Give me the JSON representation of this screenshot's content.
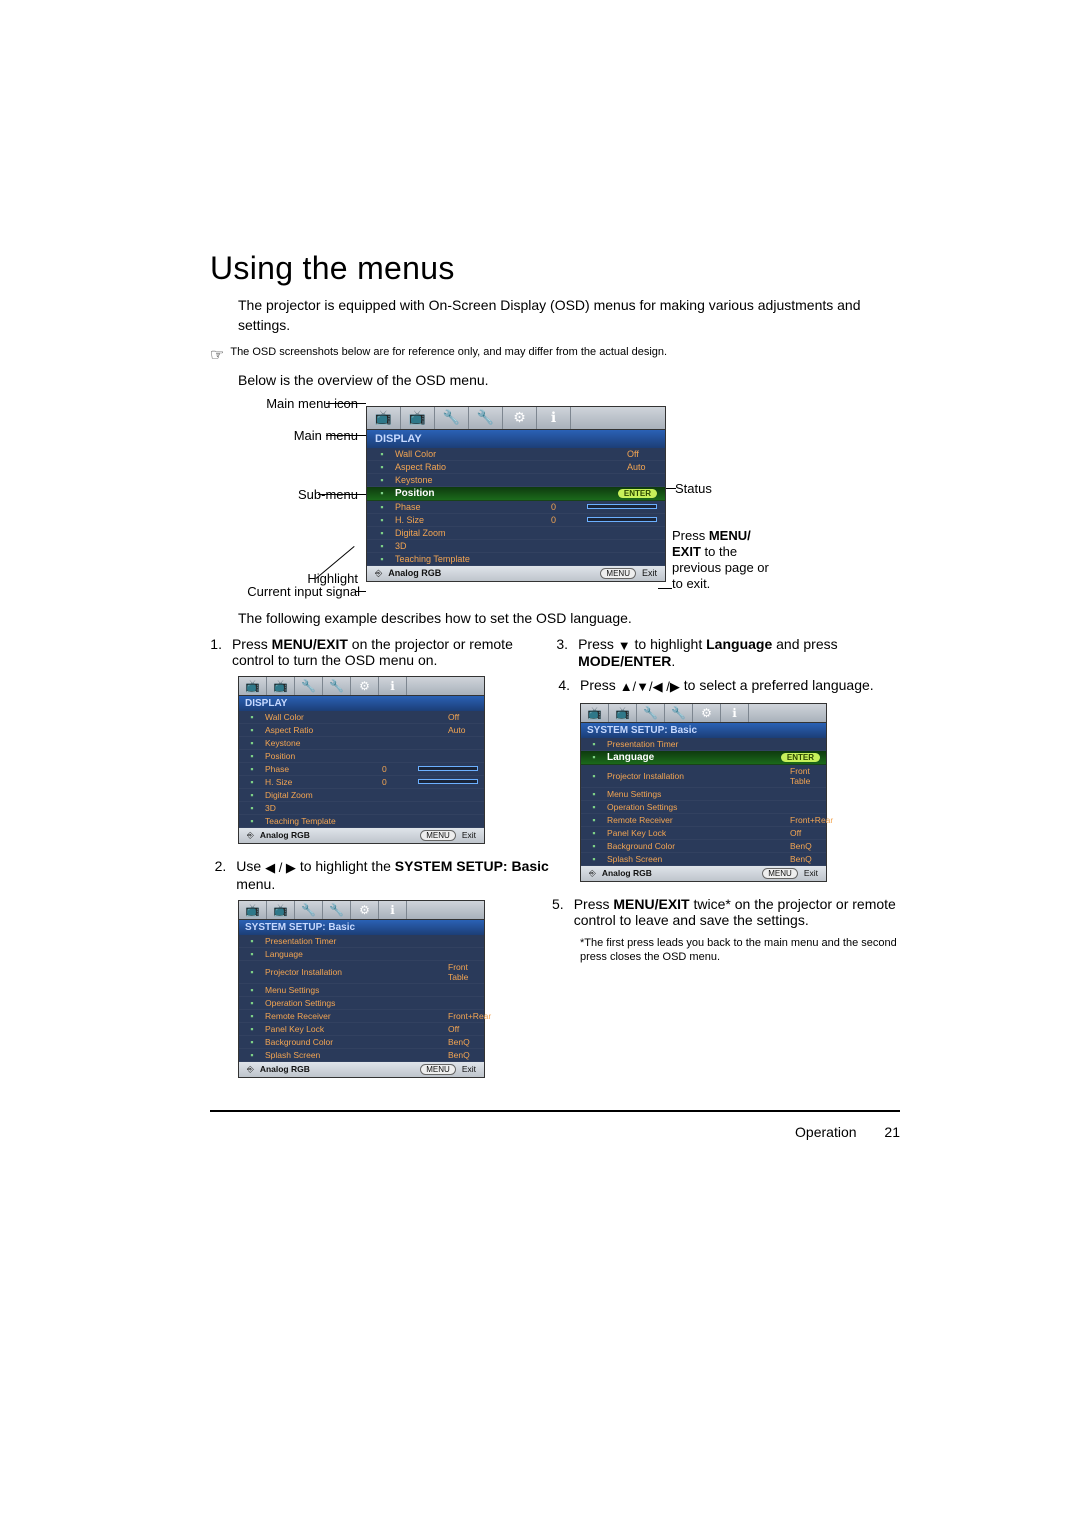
{
  "heading": "Using the menus",
  "intro": "The projector is equipped with On-Screen Display (OSD) menus for making various adjustments and settings.",
  "note": "The OSD screenshots below are for reference only, and may differ from the actual design.",
  "overview": "Below is the overview of the OSD menu.",
  "diagram_labels": {
    "main_menu_icon": "Main menu icon",
    "main_menu": "Main menu",
    "sub_menu": "Sub-menu",
    "highlight": "Highlight",
    "current_input": "Current input signal",
    "status": "Status",
    "press_menu_exit": "Press MENU/\nEXIT to the previous page or to exit.",
    "press_menu_prefix": "Press ",
    "press_menu_bold": "MENU/\nEXIT",
    "press_menu_suffix": " to the previous page or to exit."
  },
  "main_osd": {
    "title": "DISPLAY",
    "rows": [
      {
        "label": "Wall Color",
        "val": "Off"
      },
      {
        "label": "Aspect Ratio",
        "val": "Auto"
      },
      {
        "label": "Keystone",
        "val": ""
      },
      {
        "label": "Position",
        "hl": true,
        "enter": "ENTER"
      },
      {
        "label": "Phase",
        "val": "0",
        "slider": true
      },
      {
        "label": "H. Size",
        "val": "0",
        "slider": true
      },
      {
        "label": "Digital Zoom",
        "val": ""
      },
      {
        "label": "3D",
        "val": ""
      },
      {
        "label": "Teaching Template",
        "val": ""
      }
    ],
    "signal": "Analog RGB",
    "menu_chip": "MENU",
    "exit_text": "Exit"
  },
  "steps_desc": "The following example describes how to set the OSD language.",
  "step1": {
    "num": "1.",
    "prefix": "Press ",
    "bold1": "MENU/EXIT",
    "suffix": " on the projector or remote control to turn the OSD menu on."
  },
  "step1_osd": {
    "title": "DISPLAY",
    "rows": [
      {
        "label": "Wall Color",
        "val": "Off"
      },
      {
        "label": "Aspect Ratio",
        "val": "Auto"
      },
      {
        "label": "Keystone",
        "val": ""
      },
      {
        "label": "Position",
        "val": ""
      },
      {
        "label": "Phase",
        "val": "0",
        "slider": true
      },
      {
        "label": "H. Size",
        "val": "0",
        "slider": true
      },
      {
        "label": "Digital Zoom",
        "val": ""
      },
      {
        "label": "3D",
        "val": ""
      },
      {
        "label": "Teaching Template",
        "val": ""
      }
    ],
    "signal": "Analog RGB",
    "menu_chip": "MENU",
    "exit_text": "Exit"
  },
  "step2": {
    "num": "2.",
    "prefix": "Use ",
    "arrows": "◀ / ▶",
    "mid": " to highlight the ",
    "bold1": "SYSTEM SETUP: Basic",
    "suffix": " menu."
  },
  "step2_osd": {
    "title": "SYSTEM SETUP: Basic",
    "rows": [
      {
        "label": "Presentation Timer",
        "val": ""
      },
      {
        "label": "Language",
        "val": ""
      },
      {
        "label": "Projector Installation",
        "val": "Front Table"
      },
      {
        "label": "Menu Settings",
        "val": ""
      },
      {
        "label": "Operation Settings",
        "val": ""
      },
      {
        "label": "Remote Receiver",
        "val": "Front+Rear"
      },
      {
        "label": "Panel Key Lock",
        "val": "Off"
      },
      {
        "label": "Background Color",
        "val": "BenQ"
      },
      {
        "label": "Splash Screen",
        "val": "BenQ"
      }
    ],
    "signal": "Analog RGB",
    "menu_chip": "MENU",
    "exit_text": "Exit"
  },
  "step3": {
    "num": "3.",
    "prefix": "Press ",
    "arrow": "▼",
    "mid": " to highlight ",
    "bold1": "Language",
    "mid2": " and press ",
    "bold2": "MODE/ENTER",
    "suffix": "."
  },
  "step4": {
    "num": "4.",
    "prefix": "Press ",
    "arrows": "▲/▼/◀ /▶",
    "suffix": " to select a preferred language."
  },
  "step4_osd": {
    "title": "SYSTEM SETUP: Basic",
    "rows": [
      {
        "label": "Presentation Timer",
        "val": ""
      },
      {
        "label": "Language",
        "hl": true,
        "hlcolor": "#c7f15a",
        "enter": "ENTER"
      },
      {
        "label": "Projector Installation",
        "val": "Front Table"
      },
      {
        "label": "Menu Settings",
        "val": ""
      },
      {
        "label": "Operation Settings",
        "val": ""
      },
      {
        "label": "Remote Receiver",
        "val": "Front+Rear"
      },
      {
        "label": "Panel Key Lock",
        "val": "Off"
      },
      {
        "label": "Background Color",
        "val": "BenQ"
      },
      {
        "label": "Splash Screen",
        "val": "BenQ"
      }
    ],
    "signal": "Analog RGB",
    "menu_chip": "MENU",
    "exit_text": "Exit"
  },
  "step5": {
    "num": "5.",
    "prefix": "Press ",
    "bold1": "MENU/EXIT",
    "suffix": " twice* on the projector or remote control to leave and save the settings."
  },
  "step5_note": "*The first press leads you back to the main menu and the second press closes the OSD menu.",
  "footer": {
    "section": "Operation",
    "page": "21"
  },
  "icons": [
    "📺",
    "📺",
    "🔧",
    "🔧",
    "⚙",
    "ℹ"
  ]
}
